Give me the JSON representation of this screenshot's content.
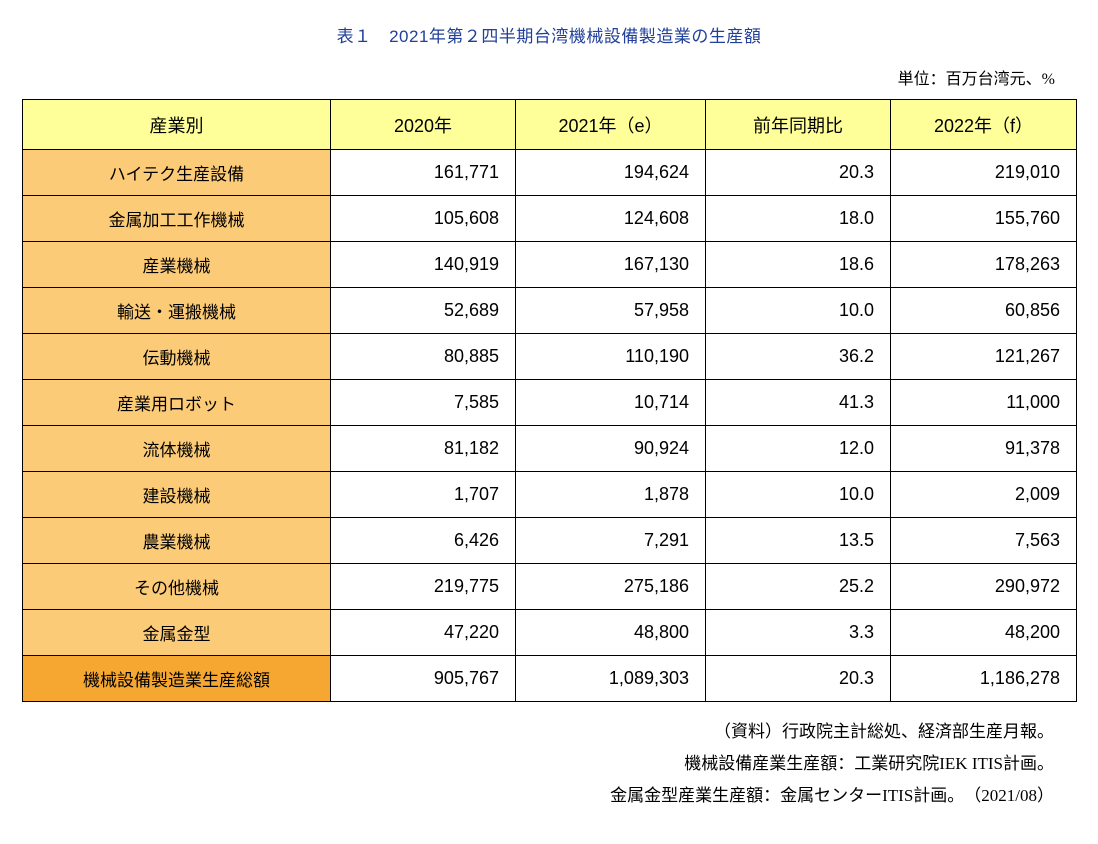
{
  "title": "表１　2021年第２四半期台湾機械設備製造業の生産額",
  "unit_note": "単位：百万台湾元、%",
  "table": {
    "columns": [
      "産業別",
      "2020年",
      "2021年（e）",
      "前年同期比",
      "2022年（f）"
    ],
    "rows": [
      {
        "category": "ハイテク生産設備",
        "values": [
          "161,771",
          "194,624",
          "20.3",
          "219,010"
        ],
        "is_total": false
      },
      {
        "category": "金属加工工作機械",
        "values": [
          "105,608",
          "124,608",
          "18.0",
          "155,760"
        ],
        "is_total": false
      },
      {
        "category": "産業機械",
        "values": [
          "140,919",
          "167,130",
          "18.6",
          "178,263"
        ],
        "is_total": false
      },
      {
        "category": "輸送・運搬機械",
        "values": [
          "52,689",
          "57,958",
          "10.0",
          "60,856"
        ],
        "is_total": false
      },
      {
        "category": "伝動機械",
        "values": [
          "80,885",
          "110,190",
          "36.2",
          "121,267"
        ],
        "is_total": false
      },
      {
        "category": "産業用ロボット",
        "values": [
          "7,585",
          "10,714",
          "41.3",
          "11,000"
        ],
        "is_total": false
      },
      {
        "category": "流体機械",
        "values": [
          "81,182",
          "90,924",
          "12.0",
          "91,378"
        ],
        "is_total": false
      },
      {
        "category": "建設機械",
        "values": [
          "1,707",
          "1,878",
          "10.0",
          "2,009"
        ],
        "is_total": false
      },
      {
        "category": "農業機械",
        "values": [
          "6,426",
          "7,291",
          "13.5",
          "7,563"
        ],
        "is_total": false
      },
      {
        "category": "その他機械",
        "values": [
          "219,775",
          "275,186",
          "25.2",
          "290,972"
        ],
        "is_total": false
      },
      {
        "category": "金属金型",
        "values": [
          "47,220",
          "48,800",
          "3.3",
          "48,200"
        ],
        "is_total": false
      },
      {
        "category": "機械設備製造業生産総額",
        "values": [
          "905,767",
          "1,089,303",
          "20.3",
          "1,186,278"
        ],
        "is_total": true
      }
    ]
  },
  "footnotes": [
    "（資料）行政院主計総処、経済部生産月報。",
    "機械設備産業生産額：工業研究院IEK ITIS計画。",
    "金属金型産業生産額：金属センターITIS計画。　（2021/08）"
  ],
  "colors": {
    "title_text": "#21409A",
    "header_bg": "#FFFF99",
    "category_bg": "#FBCB77",
    "total_bg": "#F5A732",
    "border": "#000000",
    "page_bg": "#FFFFFF"
  },
  "chart_data": {
    "type": "table",
    "title": "表１　2021年第２四半期台湾機械設備製造業の生産額",
    "unit": "百万台湾元、%",
    "columns": [
      "産業別",
      "2020年",
      "2021年（e）",
      "前年同期比",
      "2022年（f）"
    ],
    "rows": [
      [
        "ハイテク生産設備",
        161771,
        194624,
        20.3,
        219010
      ],
      [
        "金属加工工作機械",
        105608,
        124608,
        18.0,
        155760
      ],
      [
        "産業機械",
        140919,
        167130,
        18.6,
        178263
      ],
      [
        "輸送・運搬機械",
        52689,
        57958,
        10.0,
        60856
      ],
      [
        "伝動機械",
        80885,
        110190,
        36.2,
        121267
      ],
      [
        "産業用ロボット",
        7585,
        10714,
        41.3,
        11000
      ],
      [
        "流体機械",
        81182,
        90924,
        12.0,
        91378
      ],
      [
        "建設機械",
        1707,
        1878,
        10.0,
        2009
      ],
      [
        "農業機械",
        6426,
        7291,
        13.5,
        7563
      ],
      [
        "その他機械",
        219775,
        275186,
        25.2,
        290972
      ],
      [
        "金属金型",
        47220,
        48800,
        3.3,
        48200
      ],
      [
        "機械設備製造業生産総額",
        905767,
        1089303,
        20.3,
        1186278
      ]
    ],
    "notes": [
      "（資料）行政院主計総処、経済部生産月報。",
      "機械設備産業生産額：工業研究院IEK ITIS計画。",
      "金属金型産業生産額：金属センターITIS計画。　（2021/08）"
    ]
  }
}
